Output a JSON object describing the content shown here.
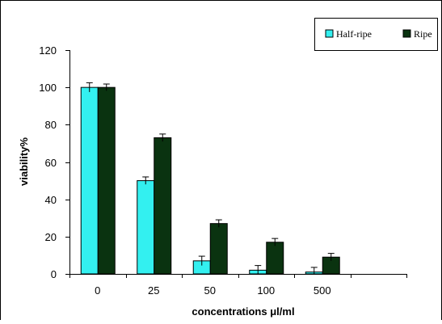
{
  "chart_data": {
    "type": "bar",
    "title": "",
    "xlabel": "concentrations μl/ml",
    "ylabel": "viability%",
    "categories": [
      "0",
      "25",
      "50",
      "100",
      "500",
      ""
    ],
    "ylim": [
      0,
      120
    ],
    "yticks": [
      0,
      20,
      40,
      60,
      80,
      100,
      120
    ],
    "grid": false,
    "legend_position": "top-right",
    "error_bars": true,
    "series": [
      {
        "name": "Half-ripe",
        "color": "#33f0f0",
        "values": [
          100,
          50,
          7,
          2,
          1,
          null
        ],
        "errors": [
          2.5,
          2,
          2.5,
          2.5,
          2.5,
          null
        ]
      },
      {
        "name": "Ripe",
        "color": "#0a3310",
        "values": [
          100,
          73,
          27,
          17,
          9,
          null
        ],
        "errors": [
          1.8,
          2,
          2,
          2,
          2,
          null
        ]
      }
    ]
  }
}
